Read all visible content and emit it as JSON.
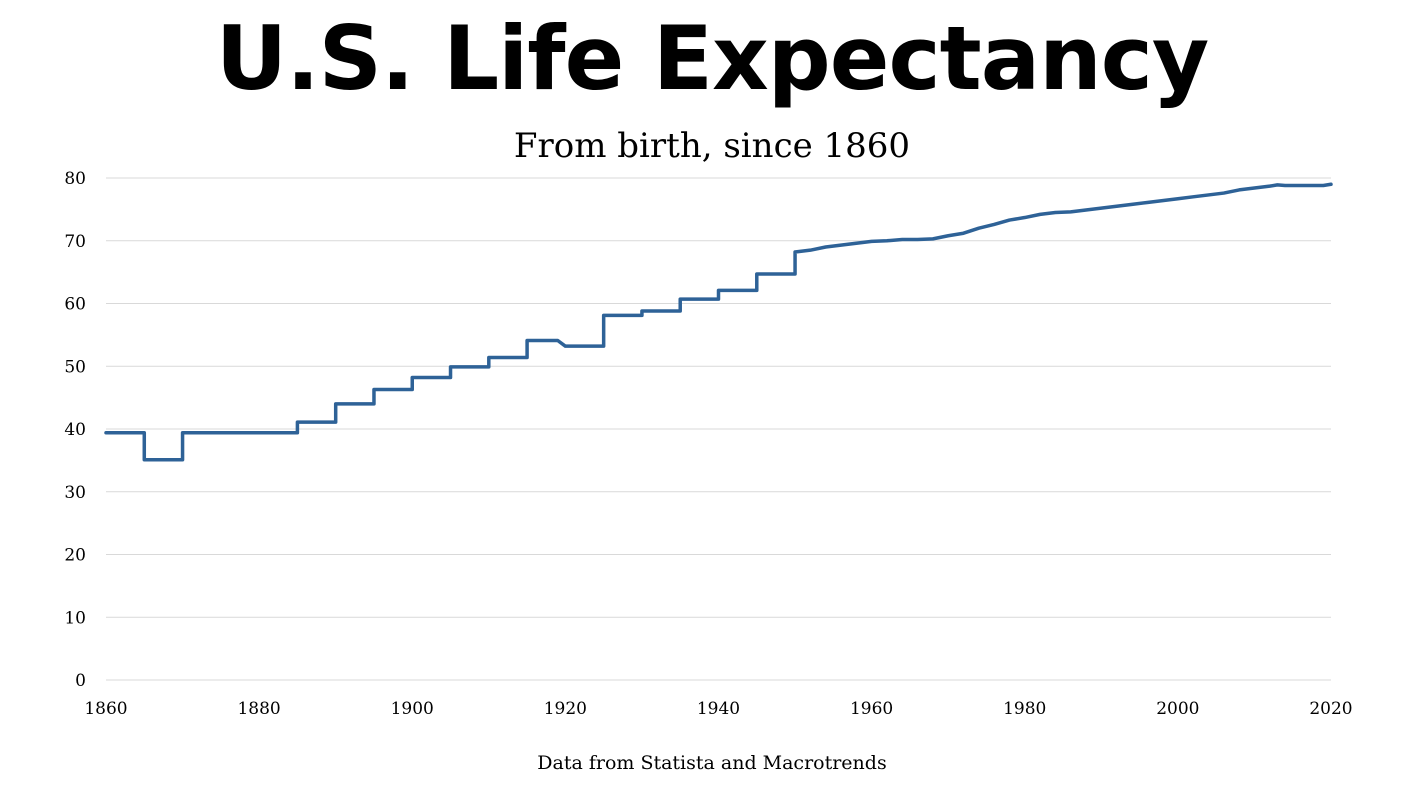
{
  "chart_data": {
    "type": "line",
    "title": "U.S. Life Expectancy",
    "subtitle": "From birth, since 1860",
    "source_note": "Data from Statista and Macrotrends",
    "xlabel": "",
    "ylabel": "",
    "xlim": [
      1860,
      2020
    ],
    "ylim": [
      0,
      80
    ],
    "x_ticks": [
      1860,
      1880,
      1900,
      1920,
      1940,
      1960,
      1980,
      2000,
      2020
    ],
    "y_ticks": [
      0,
      10,
      20,
      30,
      40,
      50,
      60,
      70,
      80
    ],
    "grid": true,
    "line_color": "#2e6297",
    "series": [
      {
        "name": "Life expectancy",
        "points": [
          [
            1860,
            39.4
          ],
          [
            1865,
            39.4
          ],
          [
            1865,
            35.1
          ],
          [
            1870,
            35.1
          ],
          [
            1870,
            39.4
          ],
          [
            1885,
            39.4
          ],
          [
            1885,
            41.1
          ],
          [
            1890,
            41.1
          ],
          [
            1890,
            44.0
          ],
          [
            1895,
            44.0
          ],
          [
            1895,
            46.3
          ],
          [
            1900,
            46.3
          ],
          [
            1900,
            48.2
          ],
          [
            1905,
            48.2
          ],
          [
            1905,
            49.9
          ],
          [
            1910,
            49.9
          ],
          [
            1910,
            51.4
          ],
          [
            1915,
            51.4
          ],
          [
            1915,
            54.1
          ],
          [
            1919,
            54.1
          ],
          [
            1920,
            53.2
          ],
          [
            1925,
            53.2
          ],
          [
            1925,
            58.1
          ],
          [
            1930,
            58.1
          ],
          [
            1930,
            58.8
          ],
          [
            1935,
            58.8
          ],
          [
            1935,
            60.7
          ],
          [
            1940,
            60.7
          ],
          [
            1940,
            62.1
          ],
          [
            1945,
            62.1
          ],
          [
            1945,
            64.7
          ],
          [
            1950,
            64.7
          ],
          [
            1950,
            68.2
          ],
          [
            1952,
            68.5
          ],
          [
            1954,
            69.0
          ],
          [
            1956,
            69.3
          ],
          [
            1958,
            69.6
          ],
          [
            1960,
            69.9
          ],
          [
            1962,
            70.0
          ],
          [
            1964,
            70.2
          ],
          [
            1966,
            70.2
          ],
          [
            1968,
            70.3
          ],
          [
            1970,
            70.8
          ],
          [
            1972,
            71.2
          ],
          [
            1974,
            72.0
          ],
          [
            1976,
            72.6
          ],
          [
            1978,
            73.3
          ],
          [
            1980,
            73.7
          ],
          [
            1982,
            74.2
          ],
          [
            1984,
            74.5
          ],
          [
            1986,
            74.6
          ],
          [
            1988,
            74.9
          ],
          [
            1990,
            75.2
          ],
          [
            1992,
            75.5
          ],
          [
            1994,
            75.8
          ],
          [
            1996,
            76.1
          ],
          [
            1998,
            76.4
          ],
          [
            2000,
            76.7
          ],
          [
            2002,
            77.0
          ],
          [
            2004,
            77.3
          ],
          [
            2006,
            77.6
          ],
          [
            2008,
            78.1
          ],
          [
            2010,
            78.4
          ],
          [
            2012,
            78.7
          ],
          [
            2013,
            78.9
          ],
          [
            2014,
            78.8
          ],
          [
            2016,
            78.8
          ],
          [
            2018,
            78.8
          ],
          [
            2019,
            78.8
          ],
          [
            2020,
            79.0
          ]
        ]
      }
    ]
  }
}
